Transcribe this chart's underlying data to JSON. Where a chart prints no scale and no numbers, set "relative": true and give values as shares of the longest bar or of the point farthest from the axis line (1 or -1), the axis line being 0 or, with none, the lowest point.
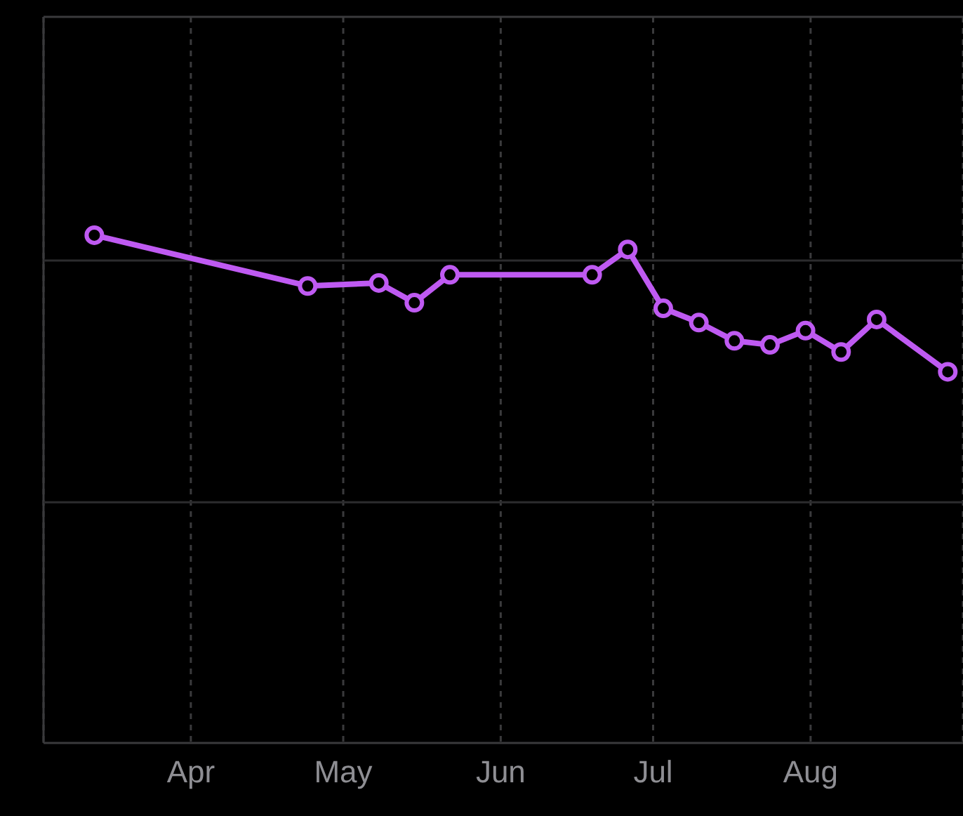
{
  "chart_data": {
    "type": "line",
    "relative": true,
    "x": [
      "--03-13",
      "--04-24",
      "--05-08",
      "--05-15",
      "--05-22",
      "--06-19",
      "--06-26",
      "--07-03",
      "--07-10",
      "--07-17",
      "--07-24",
      "--07-31",
      "--08-07",
      "--08-14",
      "--08-28"
    ],
    "series": [
      {
        "color": "#bf5af2",
        "values": [
          1,
          0.9,
          0.906,
          0.867,
          0.922,
          0.922,
          0.972,
          0.856,
          0.828,
          0.792,
          0.784,
          0.812,
          0.77,
          0.834,
          0.731
        ]
      }
    ],
    "xlim": [
      "--03-03",
      "--08-31"
    ],
    "xticks": [
      {
        "value": "--04-01",
        "label": "Apr"
      },
      {
        "value": "--05-01",
        "label": "May"
      },
      {
        "value": "--06-01",
        "label": "Jun"
      },
      {
        "value": "--07-01",
        "label": "Jul"
      },
      {
        "value": "--08-01",
        "label": "Aug"
      }
    ],
    "ref_lines": [
      {
        "axis": "y",
        "value": 0.474,
        "color": "#2c2c2e",
        "line_style": "solid"
      },
      {
        "axis": "y",
        "value": 0.95,
        "color": "#2c2c2e",
        "line_style": "solid"
      }
    ],
    "grid": "x",
    "marker": "circle",
    "line_style": "solid",
    "legend": false
  }
}
